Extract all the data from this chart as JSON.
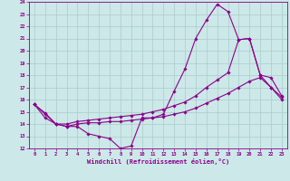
{
  "background_color": "#cce8e8",
  "grid_color": "#aacccc",
  "line_color": "#8b008b",
  "xlabel": "Windchill (Refroidissement éolien,°C)",
  "xlim": [
    -0.5,
    23.5
  ],
  "ylim": [
    12,
    24
  ],
  "xticks": [
    0,
    1,
    2,
    3,
    4,
    5,
    6,
    7,
    8,
    9,
    10,
    11,
    12,
    13,
    14,
    15,
    16,
    17,
    18,
    19,
    20,
    21,
    22,
    23
  ],
  "yticks": [
    12,
    13,
    14,
    15,
    16,
    17,
    18,
    19,
    20,
    21,
    22,
    23,
    24
  ],
  "curves": [
    {
      "x": [
        0,
        1,
        2,
        3,
        4,
        5,
        6,
        7,
        8,
        9,
        10,
        11,
        12,
        13,
        14,
        15,
        16,
        17,
        18,
        19,
        20,
        21,
        22,
        23
      ],
      "y": [
        15.6,
        14.9,
        14.0,
        13.8,
        13.8,
        13.2,
        13.0,
        12.8,
        12.0,
        12.2,
        14.5,
        14.5,
        14.8,
        16.7,
        18.5,
        21.0,
        22.5,
        23.8,
        23.2,
        20.9,
        21.0,
        18.0,
        17.8,
        16.3
      ]
    },
    {
      "x": [
        0,
        1,
        2,
        3,
        4,
        5,
        6,
        7,
        8,
        9,
        10,
        11,
        12,
        13,
        14,
        15,
        16,
        17,
        18,
        19,
        20,
        21,
        22,
        23
      ],
      "y": [
        15.6,
        14.8,
        14.0,
        14.0,
        14.2,
        14.3,
        14.4,
        14.5,
        14.6,
        14.7,
        14.8,
        15.0,
        15.2,
        15.5,
        15.8,
        16.3,
        17.0,
        17.6,
        18.2,
        20.9,
        21.0,
        18.0,
        17.0,
        16.2
      ]
    },
    {
      "x": [
        0,
        1,
        2,
        3,
        4,
        5,
        6,
        7,
        8,
        9,
        10,
        11,
        12,
        13,
        14,
        15,
        16,
        17,
        18,
        19,
        20,
        21,
        22,
        23
      ],
      "y": [
        15.6,
        14.5,
        14.0,
        13.8,
        14.0,
        14.1,
        14.1,
        14.2,
        14.2,
        14.3,
        14.4,
        14.5,
        14.6,
        14.8,
        15.0,
        15.3,
        15.7,
        16.1,
        16.5,
        17.0,
        17.5,
        17.8,
        17.0,
        16.0
      ]
    }
  ]
}
